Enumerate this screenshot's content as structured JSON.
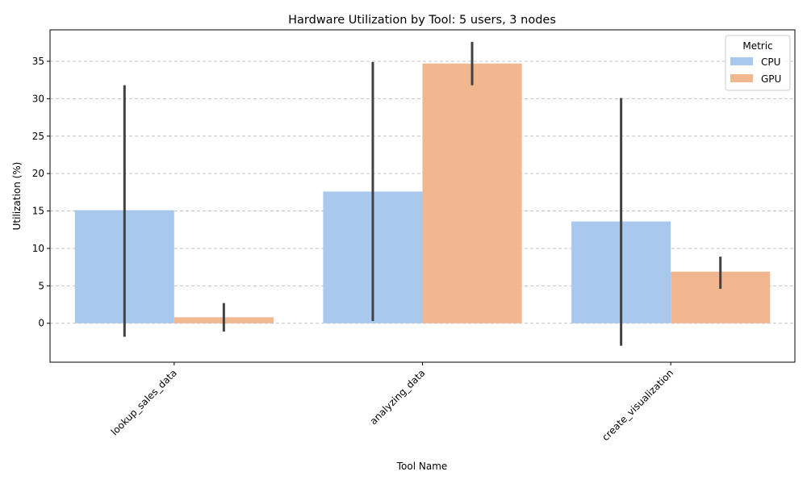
{
  "chart_data": {
    "type": "bar",
    "title": "Hardware Utilization by Tool: 5 users, 3 nodes",
    "xlabel": "Tool Name",
    "ylabel": "Utilization (%)",
    "categories": [
      "lookup_sales_data",
      "analyzing_data",
      "create_visualization"
    ],
    "series": [
      {
        "name": "CPU",
        "color": "#a9c8ee",
        "values": [
          15.1,
          17.6,
          13.6
        ],
        "error_low": [
          -1.8,
          0.3,
          -3.0
        ],
        "error_high": [
          31.8,
          34.9,
          30.1
        ]
      },
      {
        "name": "GPU",
        "color": "#f1b78f",
        "values": [
          0.8,
          34.7,
          6.9
        ],
        "error_low": [
          -1.1,
          31.8,
          4.6
        ],
        "error_high": [
          2.7,
          37.6,
          8.9
        ]
      }
    ],
    "ylim": [
      -5.2,
      39.2
    ],
    "yticks": [
      0,
      5,
      10,
      15,
      20,
      25,
      30,
      35
    ],
    "grid": "y-dashed",
    "legend": {
      "title": "Metric",
      "position": "top-right"
    },
    "errorbar_color": "#424242"
  }
}
